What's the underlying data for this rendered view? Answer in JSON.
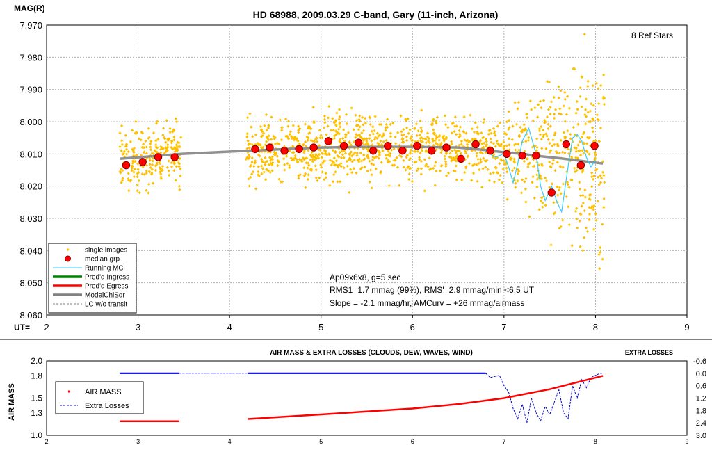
{
  "chart_data": [
    {
      "type": "scatter",
      "title": "HD 68988, 2009.03.29 C-band, Gary (11-inch, Arizona)",
      "ylabel": "MAG(R)",
      "xlabel": "UT=",
      "xlim": [
        2,
        9
      ],
      "ylim": [
        7.97,
        8.06
      ],
      "y_inverted": true,
      "x_ticks": [
        "2",
        "3",
        "4",
        "5",
        "6",
        "7",
        "8",
        "9"
      ],
      "y_ticks": [
        "7.970",
        "7.980",
        "7.990",
        "8.000",
        "8.010",
        "8.020",
        "8.030",
        "8.040",
        "8.050",
        "8.060"
      ],
      "grid": true,
      "legend_position": "bottom-left",
      "legend": [
        {
          "label": "single images",
          "color": "#ffc000",
          "style": "dot"
        },
        {
          "label": "median grp",
          "color": "#ff0000",
          "style": "circle"
        },
        {
          "label": "Running MC",
          "color": "#33ccff",
          "style": "line"
        },
        {
          "label": "Pred'd Ingress",
          "color": "#008000",
          "style": "thickline"
        },
        {
          "label": "Pred'd Egress",
          "color": "#ff0000",
          "style": "thickline"
        },
        {
          "label": "ModelChiSqr",
          "color": "#808080",
          "style": "thickline"
        },
        {
          "label": "LC w/o transit",
          "color": "#808080",
          "style": "dashed"
        }
      ],
      "annotations": {
        "ref_stars": "8 Ref Stars",
        "lines": [
          "Ap09x6x8, g=5 sec",
          "RMS1=1.7 mmag (99%), RMS'=2.9 mmag/min <6.5 UT",
          "Slope = -2.1 mmag/hr, AMCurv = +26 mmag/airmass"
        ]
      },
      "series": [
        {
          "name": "median grp",
          "x": [
            2.87,
            3.05,
            3.22,
            3.4,
            4.28,
            4.44,
            4.6,
            4.76,
            4.92,
            5.08,
            5.25,
            5.41,
            5.57,
            5.73,
            5.89,
            6.05,
            6.21,
            6.37,
            6.53,
            6.69,
            6.85,
            7.03,
            7.2,
            7.35,
            7.52,
            7.68,
            7.84,
            7.99
          ],
          "y": [
            8.0135,
            8.0125,
            8.011,
            8.011,
            8.0085,
            8.008,
            8.009,
            8.0085,
            8.008,
            8.006,
            8.0075,
            8.0065,
            8.009,
            8.0075,
            8.009,
            8.0075,
            8.009,
            8.008,
            8.0115,
            8.007,
            8.009,
            8.01,
            8.0105,
            8.0105,
            8.022,
            8.007,
            8.0135,
            8.0075
          ]
        },
        {
          "name": "ModelChiSqr",
          "x": [
            2.8,
            3.47,
            4.2,
            4.6,
            5.0,
            5.5,
            6.0,
            6.5,
            6.8,
            7.0,
            7.2,
            7.4,
            7.6,
            7.8,
            8.08
          ],
          "y": [
            8.0115,
            8.01,
            8.009,
            8.0085,
            8.008,
            8.0078,
            8.0078,
            8.008,
            8.0088,
            8.0095,
            8.01,
            8.0107,
            8.0113,
            8.012,
            8.013
          ]
        },
        {
          "name": "Running MC",
          "x": [
            6.8,
            6.9,
            7.0,
            7.05,
            7.1,
            7.15,
            7.2,
            7.27,
            7.35,
            7.4,
            7.45,
            7.52,
            7.58,
            7.63,
            7.7,
            7.75,
            7.8,
            7.85,
            7.9,
            7.95,
            8.0
          ],
          "y": [
            8.009,
            8.011,
            8.01,
            8.014,
            8.019,
            8.013,
            8.006,
            8.002,
            8.01,
            8.02,
            8.0245,
            8.02,
            8.025,
            8.028,
            8.014,
            8.005,
            8.004,
            8.006,
            8.011,
            8.014,
            8.012
          ]
        }
      ]
    },
    {
      "type": "line",
      "title": "AIR MASS & EXTRA LOSSES (CLOUDS, DEW, WAVES, WIND)",
      "ylabel": "AIR MASS",
      "y2label": "EXTRA LOSSES",
      "xlim": [
        2,
        9
      ],
      "ylim": [
        1.0,
        2.0
      ],
      "y2lim": [
        -0.6,
        3.0
      ],
      "y2_inverted": true,
      "x_ticks": [
        "2",
        "3",
        "4",
        "5",
        "6",
        "7",
        "8",
        "9"
      ],
      "y_ticks": [
        "1.0",
        "1.3",
        "1.5",
        "1.8",
        "2.0"
      ],
      "y2_ticks": [
        "-0.6",
        "0.0",
        "0.6",
        "1.2",
        "1.8",
        "2.4",
        "3.0"
      ],
      "legend_position": "left",
      "legend": [
        {
          "label": "AIR MASS",
          "color": "#ff0000",
          "style": "dot"
        },
        {
          "label": "Extra Losses",
          "color": "#0000cc",
          "style": "dashed"
        }
      ],
      "series": [
        {
          "name": "AIR MASS",
          "segments": [
            {
              "x": [
                2.8,
                3.45
              ],
              "y": [
                1.19,
                1.19
              ]
            },
            {
              "x": [
                4.2,
                4.6,
                5.0,
                5.5,
                6.0,
                6.5,
                7.0,
                7.5,
                8.08
              ],
              "y": [
                1.22,
                1.25,
                1.28,
                1.32,
                1.36,
                1.42,
                1.5,
                1.62,
                1.8
              ]
            }
          ]
        },
        {
          "name": "Extra Losses",
          "x": [
            2.8,
            3.45,
            4.2,
            6.8,
            6.85,
            6.95,
            7.0,
            7.05,
            7.1,
            7.15,
            7.2,
            7.25,
            7.3,
            7.35,
            7.4,
            7.45,
            7.5,
            7.55,
            7.6,
            7.65,
            7.7,
            7.75,
            7.8,
            7.85,
            7.9,
            7.95,
            8.0,
            8.05,
            8.08
          ],
          "y": [
            0.0,
            0.0,
            0.0,
            0.0,
            0.2,
            0.1,
            0.6,
            0.9,
            1.7,
            2.2,
            1.5,
            2.4,
            1.2,
            1.9,
            2.3,
            1.6,
            2.0,
            1.4,
            0.8,
            1.9,
            2.2,
            0.6,
            1.2,
            0.3,
            0.7,
            0.2,
            0.1,
            0.0,
            0.0
          ]
        }
      ]
    }
  ]
}
